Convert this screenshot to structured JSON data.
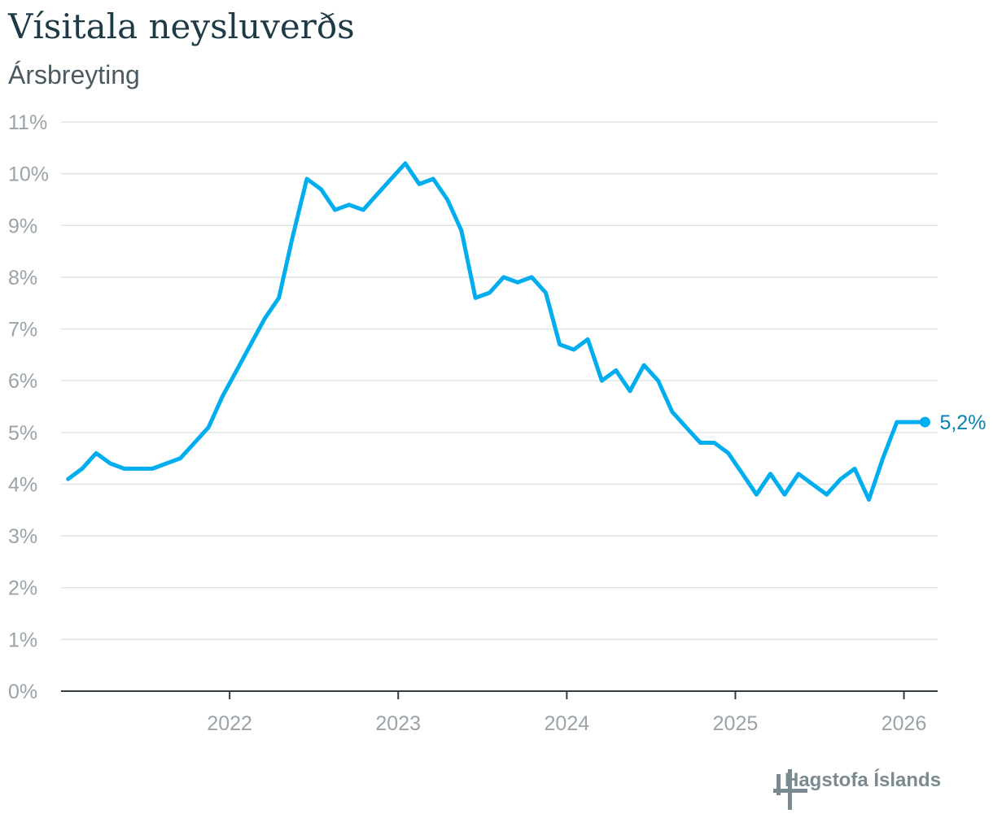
{
  "chart_data": {
    "type": "line",
    "title": "Vísitala neysluverðs",
    "subtitle": "Ársbreyting",
    "xlabel": "",
    "ylabel": "",
    "ylim": [
      0,
      11
    ],
    "y_ticks": [
      0,
      1,
      2,
      3,
      4,
      5,
      6,
      7,
      8,
      9,
      10,
      11
    ],
    "y_tick_labels": [
      "0%",
      "1%",
      "2%",
      "3%",
      "4%",
      "5%",
      "6%",
      "7%",
      "8%",
      "9%",
      "10%",
      "11%"
    ],
    "x_ticks": [
      2022,
      2023,
      2024,
      2025,
      2026
    ],
    "x_tick_labels": [
      "2022",
      "2023",
      "2024",
      "2025",
      "2026"
    ],
    "xlim": [
      2021.0,
      2026.2
    ],
    "grid": true,
    "color": "#00aeef",
    "end_label": "5,2%",
    "series": [
      {
        "x": [
          2021.042,
          2021.125,
          2021.208,
          2021.292,
          2021.375,
          2021.458,
          2021.542,
          2021.625,
          2021.708,
          2021.792,
          2021.875,
          2021.958,
          2022.042,
          2022.125,
          2022.208,
          2022.292,
          2022.375,
          2022.458,
          2022.542,
          2022.625,
          2022.708,
          2022.792,
          2022.875,
          2022.958,
          2023.042,
          2023.125,
          2023.208,
          2023.292,
          2023.375,
          2023.458,
          2023.542,
          2023.625,
          2023.708,
          2023.792,
          2023.875,
          2023.958,
          2024.042,
          2024.125,
          2024.208,
          2024.292,
          2024.375,
          2024.458,
          2024.542,
          2024.625,
          2024.708,
          2024.792,
          2024.875,
          2024.958,
          2025.042,
          2025.125,
          2025.208,
          2025.292,
          2025.375,
          2025.458,
          2025.542,
          2025.625,
          2025.708,
          2025.792,
          2025.875,
          2025.958,
          2026.042,
          2026.125
        ],
        "values": [
          4.1,
          4.3,
          4.6,
          4.4,
          4.3,
          4.3,
          4.3,
          4.4,
          4.5,
          4.8,
          5.1,
          5.7,
          6.2,
          6.7,
          7.2,
          7.6,
          8.8,
          9.9,
          9.7,
          9.3,
          9.4,
          9.3,
          9.6,
          9.9,
          10.2,
          9.8,
          9.9,
          9.5,
          8.9,
          7.6,
          7.7,
          8.0,
          7.9,
          8.0,
          7.7,
          6.7,
          6.6,
          6.8,
          6.0,
          6.2,
          5.8,
          6.3,
          6.0,
          5.4,
          5.1,
          4.8,
          4.8,
          4.6,
          4.2,
          3.8,
          4.2,
          3.8,
          4.2,
          4.0,
          3.8,
          4.1,
          4.3,
          3.7,
          4.5,
          5.2,
          5.2,
          5.2
        ]
      }
    ]
  },
  "logo": {
    "text": "Hagstofa Íslands"
  }
}
